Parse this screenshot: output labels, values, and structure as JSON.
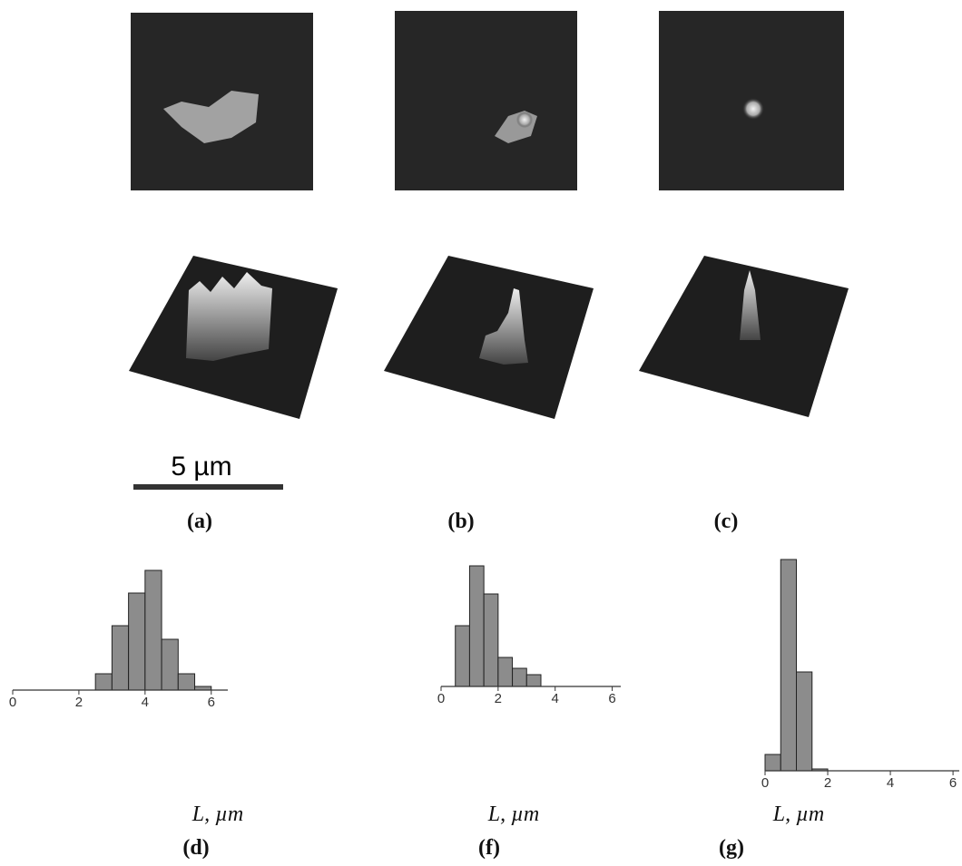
{
  "figure": {
    "scale_bar": "5 µm",
    "panel_labels": [
      "(a)",
      "(b)",
      "(c)"
    ]
  },
  "chart_data": [
    {
      "type": "histogram",
      "panel_label": "(d)",
      "x_label": "L,  µm",
      "bins": [
        2.5,
        3,
        3.5,
        4,
        4.5,
        5,
        5.5,
        6
      ],
      "values": [
        18,
        71,
        107,
        132,
        56,
        18,
        4
      ],
      "xlim": [
        0,
        6.5
      ],
      "xticks": [
        0,
        2,
        4,
        6
      ],
      "ylim": [
        0,
        140
      ],
      "color": "#8c8c8c"
    },
    {
      "type": "histogram",
      "panel_label": "(f)",
      "x_label": "L,  µm",
      "bins": [
        0.5,
        1,
        1.5,
        2,
        2.5,
        3,
        3.5
      ],
      "values": [
        67,
        133,
        102,
        32,
        20,
        13
      ],
      "xlim": [
        0,
        6.3
      ],
      "xticks": [
        0,
        2,
        4,
        6
      ],
      "ylim": [
        0,
        140
      ],
      "color": "#8c8c8c"
    },
    {
      "type": "histogram",
      "panel_label": "(g)",
      "x_label": "L,  µm",
      "bins": [
        0,
        0.5,
        1,
        1.5,
        2
      ],
      "values": [
        18,
        233,
        109,
        2
      ],
      "xlim": [
        0,
        6.2
      ],
      "xticks": [
        0,
        2,
        4,
        6
      ],
      "ylim": [
        0,
        240
      ],
      "color": "#8c8c8c"
    }
  ]
}
